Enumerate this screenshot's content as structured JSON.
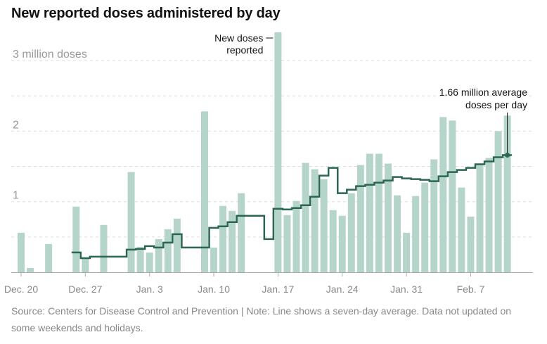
{
  "title": "New reported doses administered by day",
  "source": "Source: Centers for Disease Control and Prevention | Note: Line shows a seven-day average. Data not updated on some weekends and holidays.",
  "colors": {
    "bar": "#b5d5cb",
    "line": "#2a6652",
    "grid": "#dddddd",
    "axis": "#aaaaaa"
  },
  "chart_data": {
    "type": "bar",
    "title": "New reported doses administered by day",
    "y_unit_label": "3 million doses",
    "ylim": [
      0,
      3.4
    ],
    "yticks": [
      {
        "value": 1,
        "label": "1"
      },
      {
        "value": 2,
        "label": "2"
      },
      {
        "value": 3,
        "label": "3 million doses"
      }
    ],
    "x_tick_labels": [
      {
        "day": 0,
        "label": "Dec. 20"
      },
      {
        "day": 7,
        "label": "Dec. 27"
      },
      {
        "day": 14,
        "label": "Jan. 3"
      },
      {
        "day": 21,
        "label": "Jan. 10"
      },
      {
        "day": 28,
        "label": "Jan. 17"
      },
      {
        "day": 35,
        "label": "Jan. 24"
      },
      {
        "day": 42,
        "label": "Jan. 31"
      },
      {
        "day": 49,
        "label": "Feb. 7"
      }
    ],
    "series": [
      {
        "name": "New doses reported",
        "kind": "bar",
        "values": [
          0.56,
          0.06,
          null,
          0.4,
          null,
          null,
          0.93,
          0.19,
          null,
          0.67,
          null,
          null,
          1.42,
          0.36,
          0.28,
          0.47,
          0.61,
          0.76,
          null,
          null,
          2.28,
          0.35,
          0.94,
          0.87,
          1.12,
          null,
          null,
          null,
          3.4,
          0.81,
          1.01,
          1.55,
          1.46,
          1.32,
          0.88,
          0.8,
          1.12,
          1.52,
          1.68,
          1.68,
          1.54,
          1.09,
          0.56,
          1.08,
          1.27,
          1.6,
          2.2,
          2.15,
          1.2,
          0.79,
          1.52,
          1.62,
          2.0,
          2.22
        ]
      },
      {
        "name": "Seven-day average",
        "kind": "line",
        "values": [
          null,
          null,
          null,
          null,
          null,
          null,
          0.28,
          0.2,
          0.22,
          0.22,
          0.22,
          0.22,
          0.32,
          0.33,
          0.37,
          0.35,
          0.42,
          0.54,
          0.35,
          0.35,
          0.35,
          0.63,
          0.65,
          0.71,
          0.8,
          0.8,
          0.8,
          0.47,
          0.9,
          0.89,
          0.91,
          0.95,
          1.07,
          1.37,
          1.48,
          1.12,
          1.17,
          1.22,
          1.24,
          1.27,
          1.3,
          1.35,
          1.33,
          1.32,
          1.31,
          1.29,
          1.36,
          1.42,
          1.45,
          1.48,
          1.53,
          1.57,
          1.63,
          1.66
        ]
      }
    ],
    "annotations": {
      "bars_lines": [
        "New doses",
        "reported"
      ],
      "average_lines": [
        "1.66 million average",
        "doses per day"
      ]
    }
  }
}
